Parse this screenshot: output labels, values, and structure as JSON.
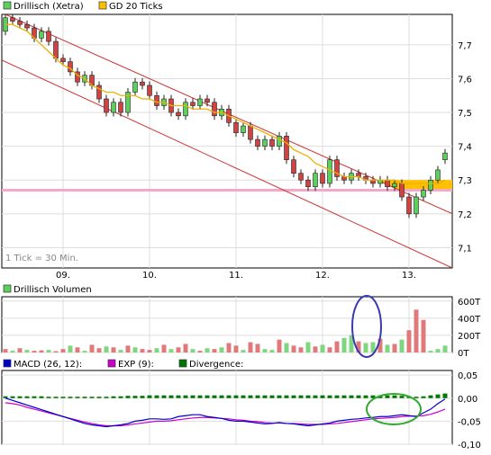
{
  "colors": {
    "price_up": "#5ccf5c",
    "price_down": "#cc4444",
    "sma": "#f0b000",
    "channel": "#cc3333",
    "support": "#f5a8c8",
    "highlight_band": "#ffc000",
    "vol_up": "#7ed67e",
    "vol_down": "#e07a7a",
    "macd": "#0000cc",
    "exp": "#cc00cc",
    "divergence": "#007700",
    "grid": "#dddddd",
    "annot_blue": "#3a3ab0",
    "annot_green": "#2faa2f"
  },
  "chart_data": [
    {
      "type": "candlestick",
      "legend": [
        {
          "label": "Drillisch (Xetra)",
          "icon": "green-square"
        },
        {
          "label": "GD 20 Ticks",
          "icon": "orange-square"
        }
      ],
      "note": "1 Tick = 30 Min.",
      "x_tick_labels": [
        "09.",
        "10.",
        "11.",
        "12.",
        "13."
      ],
      "y_tick_labels": [
        "7,7",
        "7,6",
        "7,5",
        "7,4",
        "7,3",
        "7,2",
        "7,1"
      ],
      "y_ticks": [
        7.7,
        7.6,
        7.5,
        7.4,
        7.3,
        7.2,
        7.1
      ],
      "ylim": [
        7.04,
        7.79
      ],
      "day_ticks": [
        8,
        20,
        32,
        44,
        56
      ],
      "num_ticks": 62,
      "current_price_marker": 7.3,
      "support_level": 7.27,
      "channel_upper": [
        [
          0,
          7.79
        ],
        [
          61,
          7.21
        ]
      ],
      "channel_lower": [
        [
          0,
          7.65
        ],
        [
          61,
          7.05
        ]
      ],
      "candles": [
        [
          7.74,
          7.78
        ],
        [
          7.78,
          7.77
        ],
        [
          7.77,
          7.76
        ],
        [
          7.76,
          7.75
        ],
        [
          7.75,
          7.72
        ],
        [
          7.72,
          7.74
        ],
        [
          7.74,
          7.71
        ],
        [
          7.71,
          7.66
        ],
        [
          7.66,
          7.65
        ],
        [
          7.65,
          7.62
        ],
        [
          7.62,
          7.59
        ],
        [
          7.59,
          7.61
        ],
        [
          7.61,
          7.58
        ],
        [
          7.58,
          7.54
        ],
        [
          7.54,
          7.5
        ],
        [
          7.5,
          7.53
        ],
        [
          7.53,
          7.5
        ],
        [
          7.5,
          7.56
        ],
        [
          7.56,
          7.59
        ],
        [
          7.59,
          7.58
        ],
        [
          7.58,
          7.55
        ],
        [
          7.55,
          7.52
        ],
        [
          7.52,
          7.54
        ],
        [
          7.54,
          7.5
        ],
        [
          7.5,
          7.49
        ],
        [
          7.49,
          7.53
        ],
        [
          7.53,
          7.52
        ],
        [
          7.52,
          7.54
        ],
        [
          7.54,
          7.53
        ],
        [
          7.53,
          7.49
        ],
        [
          7.49,
          7.51
        ],
        [
          7.51,
          7.47
        ],
        [
          7.47,
          7.44
        ],
        [
          7.44,
          7.46
        ],
        [
          7.46,
          7.42
        ],
        [
          7.42,
          7.4
        ],
        [
          7.4,
          7.42
        ],
        [
          7.42,
          7.4
        ],
        [
          7.4,
          7.43
        ],
        [
          7.43,
          7.36
        ],
        [
          7.36,
          7.32
        ],
        [
          7.32,
          7.3
        ],
        [
          7.3,
          7.28
        ],
        [
          7.28,
          7.32
        ],
        [
          7.32,
          7.29
        ],
        [
          7.29,
          7.36
        ],
        [
          7.36,
          7.31
        ],
        [
          7.31,
          7.3
        ],
        [
          7.3,
          7.32
        ],
        [
          7.32,
          7.31
        ],
        [
          7.31,
          7.3
        ],
        [
          7.3,
          7.29
        ],
        [
          7.29,
          7.3
        ],
        [
          7.3,
          7.28
        ],
        [
          7.28,
          7.29
        ],
        [
          7.29,
          7.25
        ],
        [
          7.25,
          7.2
        ],
        [
          7.2,
          7.25
        ],
        [
          7.25,
          7.27
        ],
        [
          7.27,
          7.3
        ],
        [
          7.3,
          7.33
        ],
        [
          7.36,
          7.38
        ]
      ],
      "sma": [
        7.76,
        7.76,
        7.75,
        7.74,
        7.72,
        7.7,
        7.68,
        7.66,
        7.64,
        7.63,
        7.61,
        7.6,
        7.58,
        7.57,
        7.56,
        7.56,
        7.55,
        7.55,
        7.55,
        7.54,
        7.54,
        7.53,
        7.53,
        7.52,
        7.52,
        7.52,
        7.51,
        7.51,
        7.51,
        7.5,
        7.5,
        7.49,
        7.48,
        7.47,
        7.46,
        7.45,
        7.44,
        7.43,
        7.42,
        7.41,
        7.39,
        7.38,
        7.37,
        7.35,
        7.34,
        7.33,
        7.32,
        7.31,
        7.31,
        7.31,
        7.3,
        7.3,
        7.3,
        7.3,
        7.3,
        7.29,
        7.29,
        7.29,
        7.29,
        7.29,
        7.29,
        7.3
      ]
    },
    {
      "type": "bar",
      "legend": [
        {
          "label": "Drillisch Volumen",
          "icon": "green-square"
        }
      ],
      "y_tick_labels": [
        "600T",
        "400T",
        "200T",
        "0T"
      ],
      "y_ticks": [
        600,
        400,
        200,
        0
      ],
      "ylim": [
        0,
        650
      ],
      "values": [
        40,
        20,
        50,
        30,
        20,
        25,
        30,
        15,
        40,
        80,
        60,
        20,
        90,
        50,
        70,
        60,
        30,
        80,
        60,
        40,
        30,
        50,
        90,
        40,
        60,
        100,
        40,
        20,
        50,
        40,
        60,
        110,
        80,
        30,
        120,
        100,
        40,
        30,
        150,
        110,
        80,
        60,
        120,
        70,
        90,
        60,
        130,
        170,
        200,
        130,
        110,
        120,
        160,
        90,
        100,
        150,
        260,
        500,
        380,
        20,
        40,
        80
      ],
      "up": [
        false,
        true,
        false,
        true,
        false,
        false,
        true,
        false,
        false,
        true,
        false,
        true,
        false,
        false,
        true,
        false,
        true,
        false,
        true,
        false,
        false,
        true,
        false,
        true,
        false,
        false,
        true,
        false,
        true,
        false,
        true,
        false,
        false,
        true,
        false,
        false,
        true,
        true,
        false,
        true,
        false,
        false,
        true,
        false,
        true,
        false,
        false,
        true,
        true,
        false,
        true,
        true,
        false,
        true,
        false,
        true,
        false,
        false,
        false,
        true,
        true,
        true
      ]
    },
    {
      "type": "line",
      "legend": [
        {
          "label": "MACD (26, 12):",
          "icon": "blue-square"
        },
        {
          "label": "EXP (9):",
          "icon": "magenta-square"
        },
        {
          "label": "Divergence:",
          "icon": "darkgreen-square"
        }
      ],
      "y_tick_labels": [
        "0,05",
        "0,00",
        "-0,05",
        "-0,10"
      ],
      "y_ticks": [
        0.05,
        0.0,
        -0.05,
        -0.1
      ],
      "ylim": [
        -0.1,
        0.06
      ],
      "macd": [
        0.0,
        -0.005,
        -0.01,
        -0.015,
        -0.02,
        -0.025,
        -0.03,
        -0.035,
        -0.04,
        -0.045,
        -0.05,
        -0.055,
        -0.058,
        -0.06,
        -0.062,
        -0.06,
        -0.058,
        -0.055,
        -0.05,
        -0.048,
        -0.045,
        -0.045,
        -0.046,
        -0.045,
        -0.04,
        -0.038,
        -0.036,
        -0.036,
        -0.04,
        -0.042,
        -0.044,
        -0.048,
        -0.05,
        -0.05,
        -0.052,
        -0.054,
        -0.056,
        -0.055,
        -0.053,
        -0.055,
        -0.056,
        -0.058,
        -0.06,
        -0.058,
        -0.056,
        -0.054,
        -0.05,
        -0.048,
        -0.046,
        -0.045,
        -0.043,
        -0.042,
        -0.04,
        -0.04,
        -0.038,
        -0.036,
        -0.038,
        -0.04,
        -0.032,
        -0.024,
        -0.012,
        -0.002
      ],
      "exp": [
        -0.01,
        -0.012,
        -0.015,
        -0.02,
        -0.024,
        -0.028,
        -0.032,
        -0.036,
        -0.04,
        -0.044,
        -0.048,
        -0.052,
        -0.055,
        -0.058,
        -0.06,
        -0.06,
        -0.06,
        -0.058,
        -0.056,
        -0.054,
        -0.052,
        -0.05,
        -0.05,
        -0.049,
        -0.047,
        -0.045,
        -0.043,
        -0.042,
        -0.042,
        -0.043,
        -0.044,
        -0.045,
        -0.047,
        -0.048,
        -0.05,
        -0.051,
        -0.053,
        -0.054,
        -0.054,
        -0.055,
        -0.055,
        -0.056,
        -0.057,
        -0.057,
        -0.057,
        -0.056,
        -0.055,
        -0.053,
        -0.051,
        -0.049,
        -0.047,
        -0.045,
        -0.044,
        -0.043,
        -0.042,
        -0.04,
        -0.039,
        -0.039,
        -0.038,
        -0.035,
        -0.03,
        -0.024
      ],
      "divergence": [
        0.004,
        0.004,
        0.004,
        0.004,
        0.004,
        0.004,
        0.003,
        0.003,
        0.003,
        0.003,
        0.003,
        0.003,
        0.003,
        0.003,
        0.003,
        0.004,
        0.004,
        0.005,
        0.005,
        0.005,
        0.006,
        0.006,
        0.006,
        0.006,
        0.006,
        0.006,
        0.006,
        0.006,
        0.006,
        0.006,
        0.006,
        0.006,
        0.006,
        0.006,
        0.006,
        0.006,
        0.006,
        0.006,
        0.006,
        0.006,
        0.006,
        0.006,
        0.006,
        0.006,
        0.006,
        0.006,
        0.006,
        0.006,
        0.006,
        0.006,
        0.006,
        0.006,
        0.006,
        0.006,
        0.006,
        0.005,
        0.004,
        0.003,
        0.004,
        0.006,
        0.008,
        0.01
      ]
    }
  ]
}
